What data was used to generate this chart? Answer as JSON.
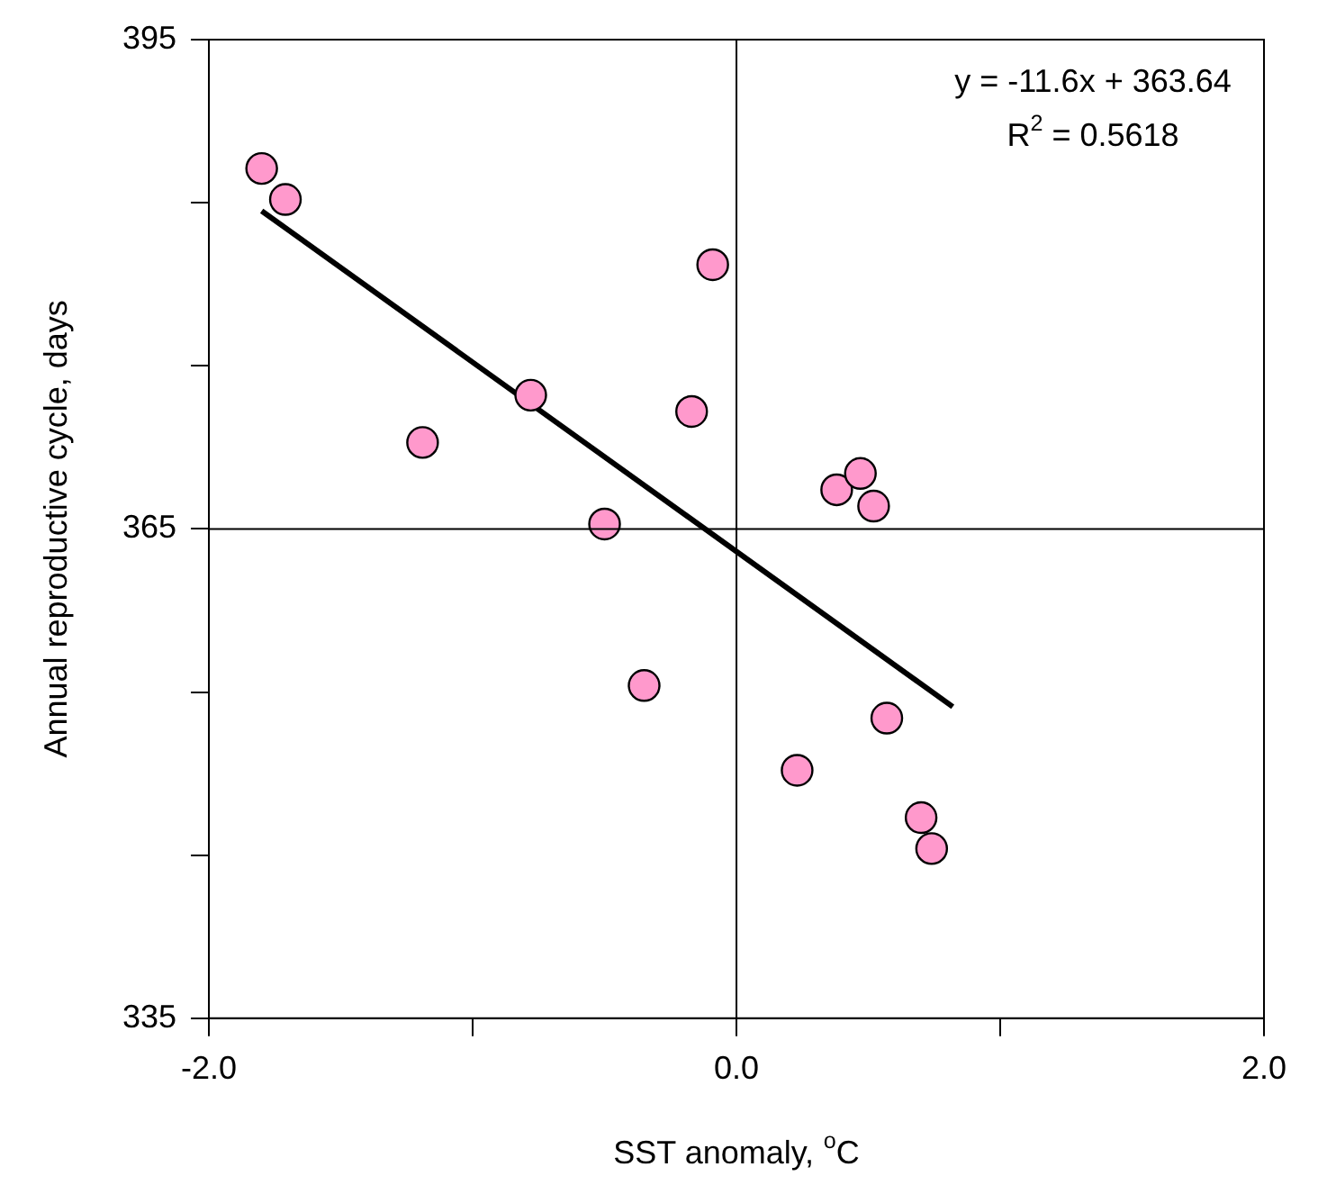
{
  "chart_data": {
    "type": "scatter",
    "xlabel": "SST anomaly, $^{o}$C",
    "ylabel": "Annual reproductive cycle, days",
    "xlim": [
      -2,
      2
    ],
    "xticks": [
      {
        "value": -2,
        "label": "-2.0"
      },
      {
        "value": -1,
        "label": null
      },
      {
        "value": 0,
        "label": "0.0"
      },
      {
        "value": 1,
        "label": null
      },
      {
        "value": 2,
        "label": "2.0"
      }
    ],
    "ylim": [
      335,
      395
    ],
    "yticks": [
      335,
      {
        "value": 345,
        "label": null
      },
      {
        "value": 355,
        "label": null
      },
      365,
      {
        "value": 375,
        "label": null
      },
      {
        "value": 385,
        "label": null
      },
      395
    ],
    "grid": false,
    "marker": "circle",
    "legend": false,
    "ref_lines": [
      {
        "axis": "x",
        "value": 0,
        "color": "#000000"
      },
      {
        "axis": "y",
        "value": 365,
        "color": "#000000"
      }
    ],
    "annotations": [
      "y = -11.6x + 363.64",
      "R$^{2}$ = 0.5618"
    ],
    "series": [
      {
        "color": "#ff99cc",
        "x": [
          -1.8,
          -1.71,
          -0.09,
          -0.78,
          -1.19,
          -0.17,
          -0.5,
          -0.35,
          0.38,
          0.47,
          0.52,
          0.23,
          0.57,
          0.7,
          0.74
        ],
        "values": [
          387.1,
          385.2,
          381.2,
          373.2,
          370.3,
          372.2,
          365.3,
          355.4,
          367.4,
          368.4,
          366.4,
          350.2,
          353.4,
          347.3,
          345.4
        ]
      },
      {
        "type": "line",
        "color": "#000000",
        "marker": "none",
        "x": [
          -1.8,
          0.82
        ],
        "values": [
          384.5,
          354.1
        ]
      }
    ]
  }
}
